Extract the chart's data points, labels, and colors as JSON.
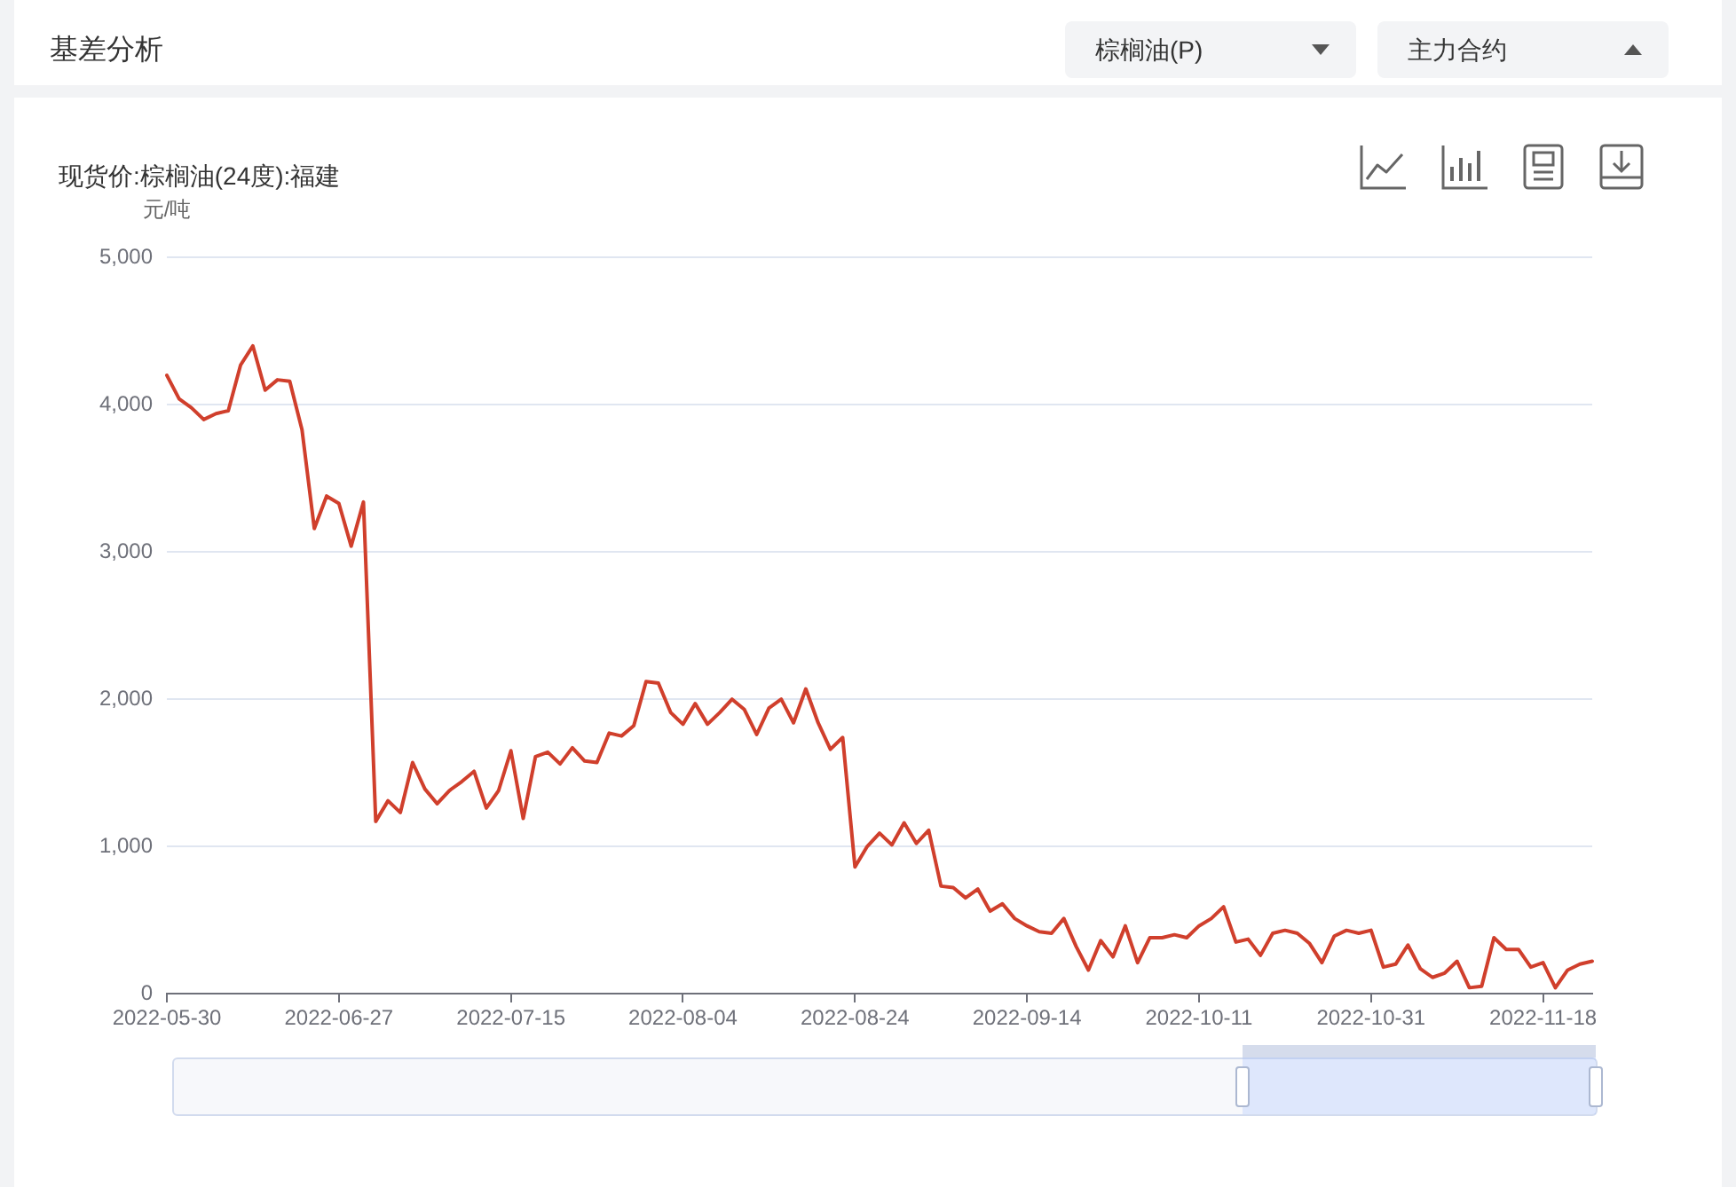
{
  "chart_data": {
    "type": "line",
    "title": "现货价:棕榈油(24度):福建",
    "ylabel": "元/吨",
    "annotations": [
      "基差分析",
      "棕榈油(P)",
      "主力合约"
    ],
    "categories": [
      "2022-05-30",
      null,
      null,
      null,
      null,
      null,
      null,
      null,
      null,
      null,
      null,
      null,
      null,
      null,
      "2022-06-27",
      null,
      null,
      null,
      null,
      null,
      null,
      null,
      null,
      null,
      null,
      null,
      null,
      null,
      "2022-07-15",
      null,
      null,
      null,
      null,
      null,
      null,
      null,
      null,
      null,
      null,
      null,
      null,
      null,
      "2022-08-04",
      null,
      null,
      null,
      null,
      null,
      null,
      null,
      null,
      null,
      null,
      null,
      null,
      null,
      "2022-08-24",
      null,
      null,
      null,
      null,
      null,
      null,
      null,
      null,
      null,
      null,
      null,
      null,
      null,
      "2022-09-14",
      null,
      null,
      null,
      null,
      null,
      null,
      null,
      null,
      null,
      null,
      null,
      null,
      null,
      "2022-10-11",
      null,
      null,
      null,
      null,
      null,
      null,
      null,
      null,
      null,
      null,
      null,
      null,
      null,
      "2022-10-31",
      null,
      null,
      null,
      null,
      null,
      null,
      null,
      null,
      null,
      null,
      null,
      null,
      null,
      "2022-11-18",
      null,
      null,
      null,
      null
    ],
    "values": [
      4200,
      4040,
      3980,
      3900,
      3940,
      3960,
      4270,
      4400,
      4100,
      4170,
      4160,
      3830,
      3160,
      3380,
      3330,
      3040,
      3340,
      1170,
      1310,
      1230,
      1570,
      1390,
      1290,
      1380,
      1440,
      1510,
      1260,
      1380,
      1650,
      1190,
      1610,
      1640,
      1560,
      1670,
      1580,
      1570,
      1770,
      1750,
      1820,
      2120,
      2110,
      1910,
      1830,
      1970,
      1830,
      1910,
      2000,
      1930,
      1760,
      1940,
      2000,
      1840,
      2070,
      1840,
      1660,
      1740,
      860,
      1000,
      1090,
      1010,
      1160,
      1020,
      1110,
      730,
      720,
      650,
      710,
      560,
      610,
      510,
      460,
      420,
      410,
      510,
      320,
      160,
      360,
      250,
      460,
      210,
      380,
      380,
      400,
      380,
      460,
      510,
      590,
      350,
      370,
      260,
      410,
      430,
      410,
      340,
      210,
      390,
      430,
      410,
      430,
      180,
      200,
      330,
      170,
      110,
      140,
      220,
      40,
      50,
      380,
      300,
      300,
      180,
      210,
      40,
      160,
      200,
      220
    ],
    "color": "#d03f2c",
    "ylim": [
      0,
      5000
    ],
    "yticks": [
      0,
      {
        "value": 1000,
        "label": "1,000"
      },
      {
        "value": 2000,
        "label": "2,000"
      },
      {
        "value": 3000,
        "label": "3,000"
      },
      {
        "value": 4000,
        "label": "4,000"
      },
      {
        "value": 5000,
        "label": "5,000"
      }
    ],
    "grid": "y"
  }
}
